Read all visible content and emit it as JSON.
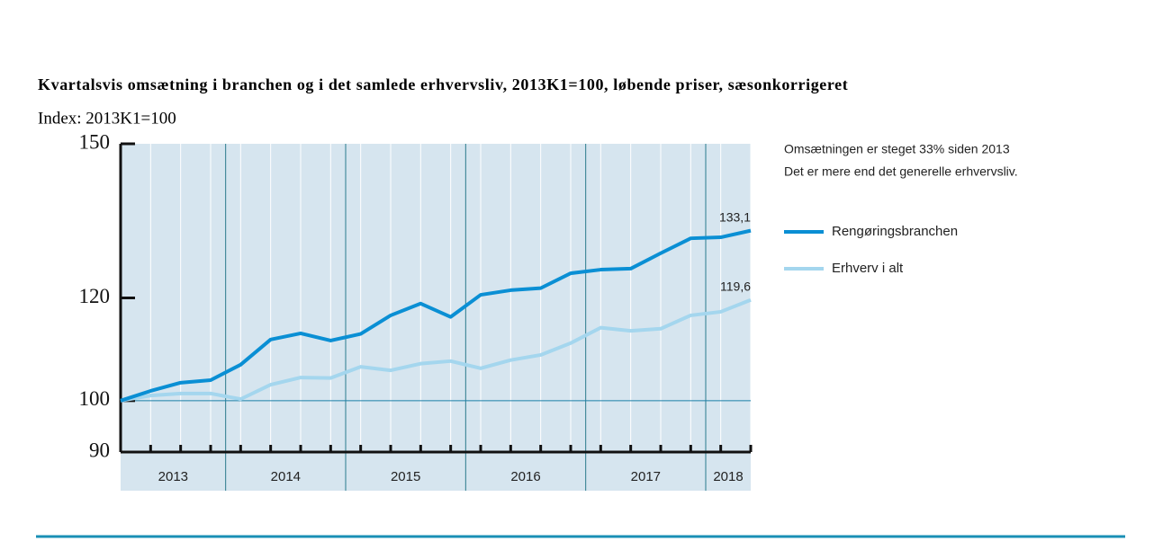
{
  "chart_data": {
    "type": "line",
    "title": "Kvartalsvis omsætning i branchen og i det samlede erhvervsliv, 2013K1=100, løbende priser, sæsonkorrigeret",
    "subtitle": "Index: 2013K1=100",
    "annotation": [
      "Omsætningen er steget 33% siden 2013",
      "Det er mere end det generelle erhvervsliv."
    ],
    "categories": [
      "2013",
      "2013",
      "2013",
      "2013",
      "2014",
      "2014",
      "2014",
      "2014",
      "2015",
      "2015",
      "2015",
      "2015",
      "2016",
      "2016",
      "2016",
      "2016",
      "2017",
      "2017",
      "2017",
      "2017",
      "2018",
      "2018"
    ],
    "ylim": [
      90,
      150
    ],
    "yticks": [
      90,
      100,
      120,
      150
    ],
    "reference_line": 100,
    "series": [
      {
        "name": "Rengøringsbranchen",
        "color": "#0a8fd4",
        "values": [
          100,
          101.9,
          103.5,
          104,
          107,
          111.9,
          113.1,
          111.7,
          113,
          116.6,
          118.9,
          116.3,
          120.6,
          121.5,
          121.9,
          124.8,
          125.5,
          125.7,
          128.7,
          131.6,
          131.8,
          133.1
        ],
        "value_labels": [
          null,
          null,
          null,
          null,
          null,
          null,
          null,
          null,
          null,
          null,
          null,
          null,
          null,
          null,
          null,
          null,
          null,
          null,
          null,
          null,
          null,
          "133,1"
        ]
      },
      {
        "name": "Erhverv i alt",
        "color": "#a4d6ee",
        "values": [
          100,
          101,
          101.4,
          101.4,
          100.3,
          103.1,
          104.5,
          104.4,
          106.6,
          105.9,
          107.2,
          107.7,
          106.3,
          107.9,
          108.9,
          111.2,
          114.2,
          113.6,
          114,
          116.6,
          117.3,
          119.6
        ],
        "value_labels": [
          null,
          null,
          null,
          null,
          null,
          null,
          null,
          null,
          null,
          null,
          null,
          null,
          null,
          null,
          null,
          null,
          null,
          null,
          null,
          null,
          null,
          "119,6"
        ]
      }
    ]
  }
}
